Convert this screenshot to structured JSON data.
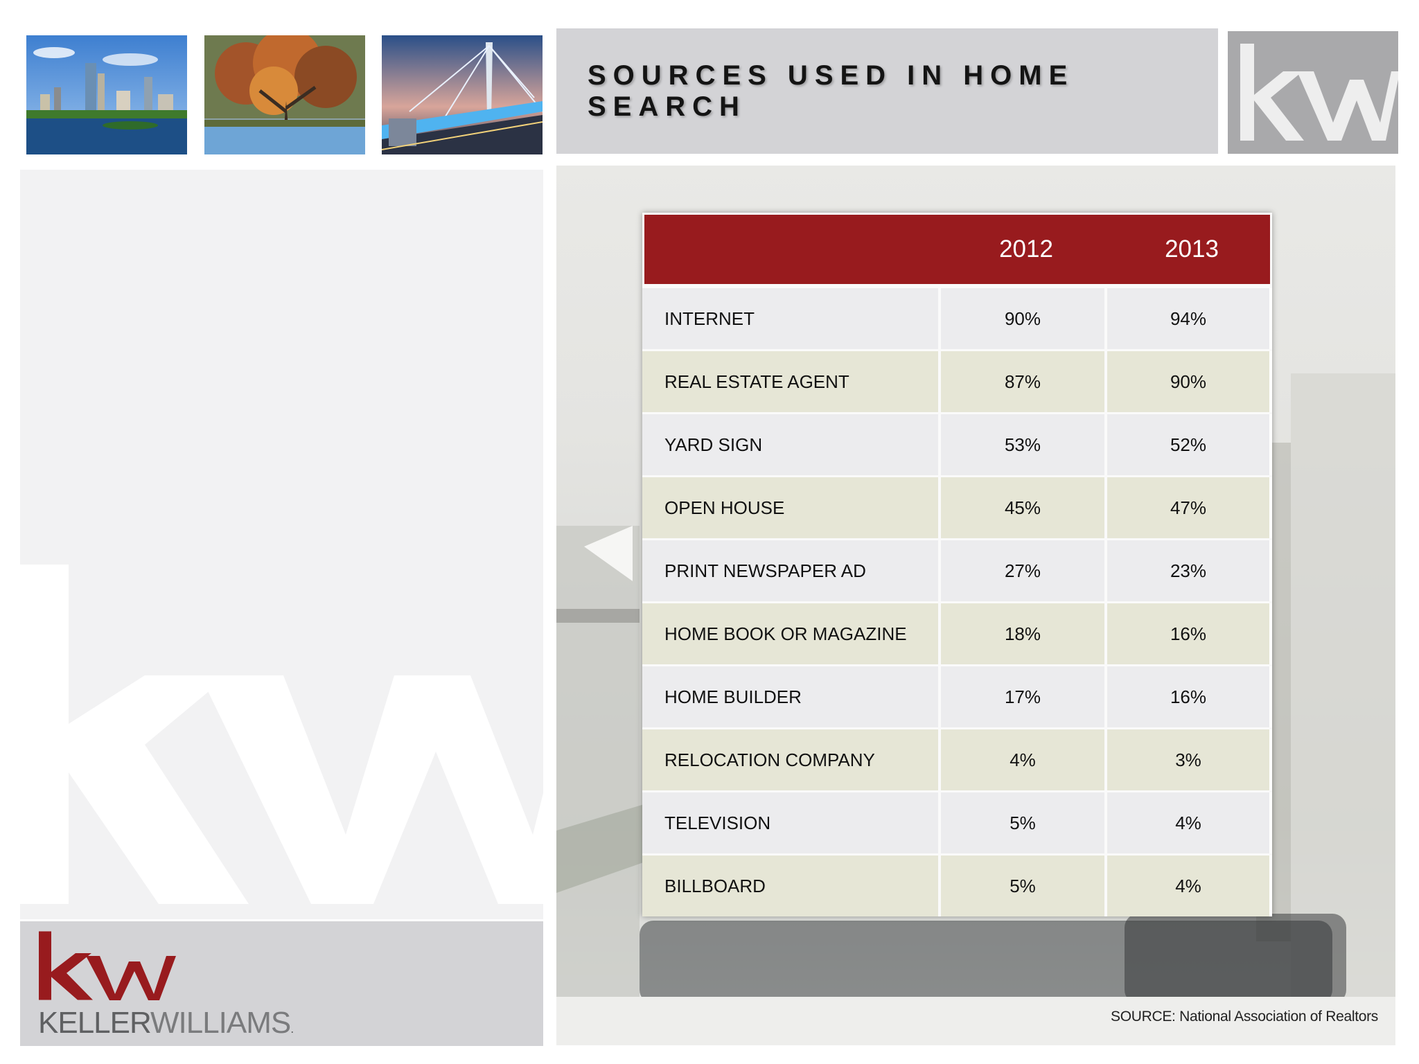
{
  "header": {
    "title": "SOURCES USED IN HOME SEARCH"
  },
  "thumbnails": [
    {
      "icon": "city-skyline-image"
    },
    {
      "icon": "autumn-tree-image"
    },
    {
      "icon": "bridge-at-dusk-image"
    }
  ],
  "brand": {
    "logo_icon": "kw-logo-icon",
    "name_bold": "KELLER",
    "name_light": "WILLIAMS",
    "name_mark": ".",
    "accent_color": "#981b1e"
  },
  "table": {
    "header_color": "#981b1e",
    "columns": [
      "",
      "2012",
      "2013"
    ],
    "rows": [
      {
        "label": "INTERNET",
        "y2012": "90%",
        "y2013": "94%"
      },
      {
        "label": "REAL ESTATE AGENT",
        "y2012": "87%",
        "y2013": "90%"
      },
      {
        "label": "YARD SIGN",
        "y2012": "53%",
        "y2013": "52%"
      },
      {
        "label": "OPEN HOUSE",
        "y2012": "45%",
        "y2013": "47%"
      },
      {
        "label": "PRINT NEWSPAPER AD",
        "y2012": "27%",
        "y2013": "23%"
      },
      {
        "label": "HOME BOOK OR MAGAZINE",
        "y2012": "18%",
        "y2013": "16%"
      },
      {
        "label": "HOME BUILDER",
        "y2012": "17%",
        "y2013": "16%"
      },
      {
        "label": "RELOCATION COMPANY",
        "y2012": "4%",
        "y2013": "3%"
      },
      {
        "label": "TELEVISION",
        "y2012": "5%",
        "y2013": "4%"
      },
      {
        "label": "BILLBOARD",
        "y2012": "5%",
        "y2013": "4%"
      }
    ]
  },
  "footer": {
    "source": "SOURCE: National Association of Realtors"
  }
}
